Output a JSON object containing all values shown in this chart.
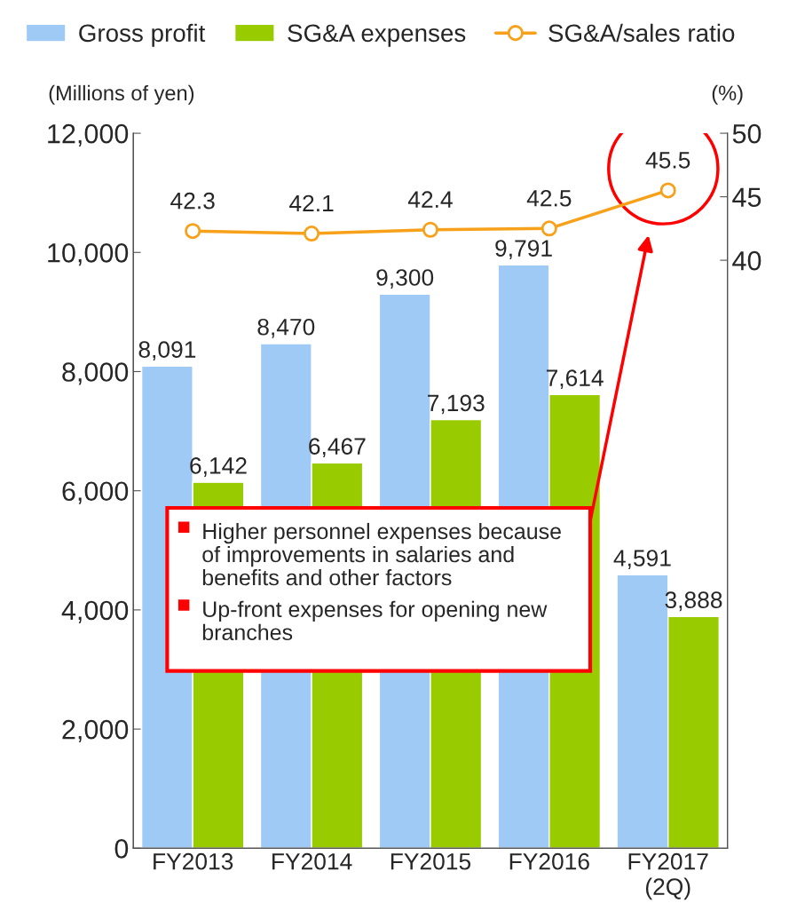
{
  "chart_data": {
    "type": "bar",
    "categories": [
      "FY2013",
      "FY2014",
      "FY2015",
      "FY2016",
      "FY2017\n(2Q)"
    ],
    "series": [
      {
        "name": "Gross profit",
        "color": "#9fcaf6",
        "values": [
          8091,
          8470,
          9300,
          9791,
          4591
        ],
        "value_labels": [
          "8,091",
          "8,470",
          "9,300",
          "9,791",
          "4,591"
        ]
      },
      {
        "name": "SG&A expenses",
        "color": "#99cc00",
        "values": [
          6142,
          6467,
          7193,
          7614,
          3888
        ],
        "value_labels": [
          "6,142",
          "6,467",
          "7,193",
          "7,614",
          "3,888"
        ]
      },
      {
        "name": "SG&A/sales ratio",
        "type": "line",
        "axis": "y2",
        "color": "#f7a11a",
        "marker": "circle",
        "values": [
          42.3,
          42.1,
          42.4,
          42.5,
          45.5
        ]
      }
    ],
    "data_labels": true,
    "ylabel": "(Millions of yen)",
    "y2label": "(%)",
    "ylim": [
      0,
      12000
    ],
    "yticks": [
      0,
      {
        "value": 2000,
        "label": "2,000"
      },
      {
        "value": 4000,
        "label": "4,000"
      },
      {
        "value": 6000,
        "label": "6,000"
      },
      {
        "value": 8000,
        "label": "8,000"
      },
      {
        "value": 10000,
        "label": "10,000"
      },
      {
        "value": 12000,
        "label": "12,000"
      }
    ],
    "y2lim": [
      -6.3,
      50
    ],
    "y2ticks": [
      40,
      45,
      50
    ],
    "grid": false,
    "legend": "top left",
    "annotations": [
      "Higher personnel expenses because\nof improvements in salaries and\nbenefits and other factors",
      "Up-front expenses for opening new\nbranches"
    ]
  }
}
